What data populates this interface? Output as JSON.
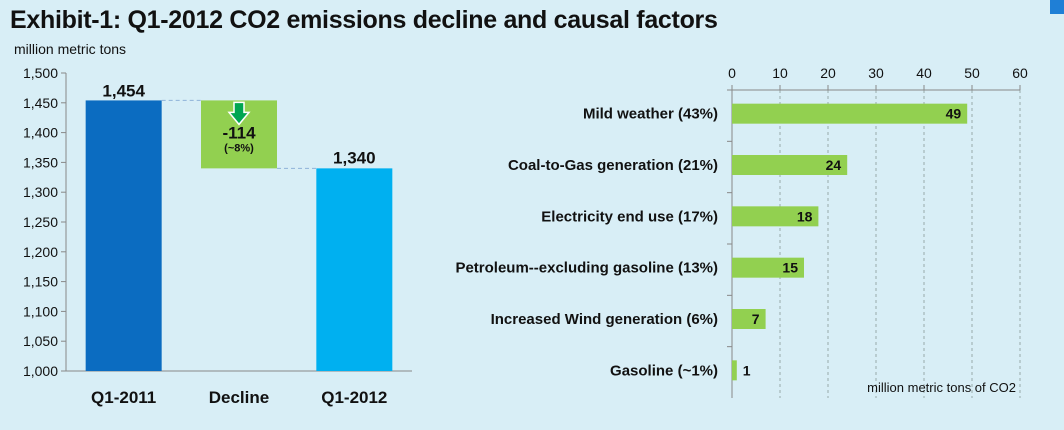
{
  "title": "Exhibit-1: Q1-2012 CO2 emissions decline and causal factors",
  "colors": {
    "background": "#d8eef6",
    "bar_q1_2011": "#0b6cc1",
    "bar_q1_2012": "#00b0f0",
    "decline_box": "#92d050",
    "decline_arrow": "#00a651",
    "factor_bar": "#92d050"
  },
  "chart_data": [
    {
      "type": "bar",
      "subtype": "waterfall",
      "ylabel": "million metric tons",
      "ylim": [
        1000,
        1500
      ],
      "yticks": [
        1000,
        1050,
        1100,
        1150,
        1200,
        1250,
        1300,
        1350,
        1400,
        1450,
        1500
      ],
      "ytick_labels": [
        "1,000",
        "1,050",
        "1,100",
        "1,150",
        "1,200",
        "1,250",
        "1,300",
        "1,350",
        "1,400",
        "1,450",
        "1,500"
      ],
      "categories": [
        "Q1-2011",
        "Decline",
        "Q1-2012"
      ],
      "values": [
        1454,
        -114,
        1340
      ],
      "value_labels": [
        "1,454",
        "-114",
        "1,340"
      ],
      "decline_percent_label": "(~8%)",
      "grid": false
    },
    {
      "type": "bar",
      "orientation": "horizontal",
      "xlabel": "million  metric tons of CO2",
      "xlim": [
        0,
        60
      ],
      "xticks": [
        0,
        10,
        20,
        30,
        40,
        50,
        60
      ],
      "xaxis_position": "top",
      "grid": true,
      "categories": [
        "Mild weather (43%)",
        "Coal-to-Gas generation (21%)",
        "Electricity end use (17%)",
        "Petroleum--excluding gasoline (13%)",
        "Increased Wind generation (6%)",
        "Gasoline (~1%)"
      ],
      "values": [
        49,
        24,
        18,
        15,
        7,
        1
      ]
    }
  ]
}
